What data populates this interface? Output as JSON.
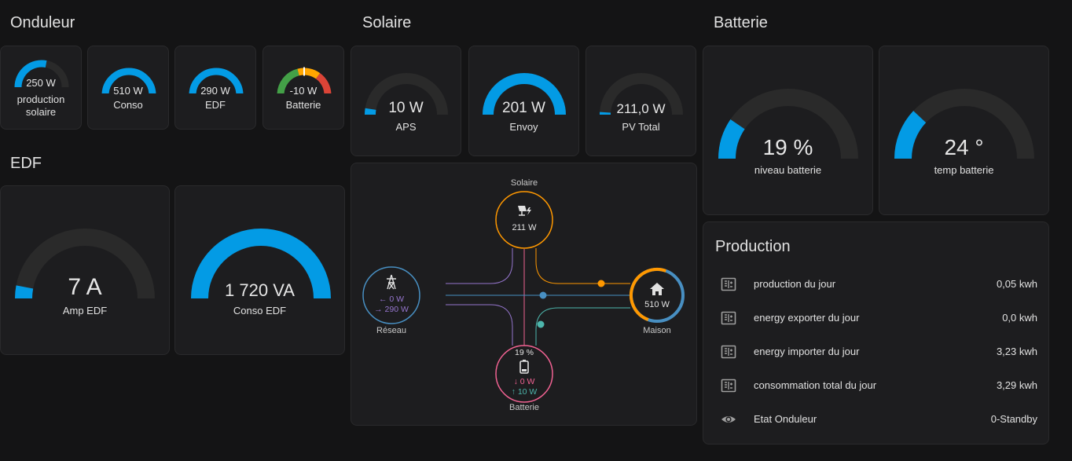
{
  "sections": {
    "onduleur": "Onduleur",
    "solaire": "Solaire",
    "batterie": "Batterie",
    "edf": "EDF"
  },
  "onduleur_gauges": [
    {
      "value": "250 W",
      "label": "production solaire",
      "level": 0.56
    },
    {
      "value": "510 W",
      "label": "Conso",
      "level": 1.0
    },
    {
      "value": "290 W",
      "label": "EDF",
      "level": 1.0
    },
    {
      "value": "-10 W",
      "label": "Batterie",
      "level": 0.5
    }
  ],
  "solaire_gauges": [
    {
      "value": "10 W",
      "label": "APS",
      "level": 0.05
    },
    {
      "value": "201 W",
      "label": "Envoy",
      "level": 1.0
    },
    {
      "value": "211,0 W",
      "label": "PV Total",
      "level": 0.02
    }
  ],
  "batterie_gauges": [
    {
      "value": "19 %",
      "label": "niveau batterie",
      "level": 0.19
    },
    {
      "value": "24 °",
      "label": "temp batterie",
      "level": 0.24
    }
  ],
  "edf_gauges": [
    {
      "value": "7 A",
      "label": "Amp EDF",
      "level": 0.06
    },
    {
      "value": "1 720 VA",
      "label": "Conso EDF",
      "level": 1.0
    }
  ],
  "energy_flow": {
    "solar": {
      "name": "Solaire",
      "value": "211 W"
    },
    "grid": {
      "name": "Réseau",
      "import": "← 0 W",
      "export": "→ 290 W"
    },
    "home": {
      "name": "Maison",
      "value": "510 W"
    },
    "battery": {
      "name": "Batterie",
      "percent": "19 %",
      "out": "↓ 0 W",
      "in": "↑ 10 W"
    }
  },
  "production": {
    "title": "Production",
    "rows": [
      {
        "icon": "meter-icon",
        "label": "production du jour",
        "value": "0,05 kwh"
      },
      {
        "icon": "meter-icon",
        "label": "energy exporter du jour",
        "value": "0,0 kwh"
      },
      {
        "icon": "meter-icon",
        "label": "energy importer du jour",
        "value": "3,23 kwh"
      },
      {
        "icon": "meter-icon",
        "label": "consommation total du jour",
        "value": "3,29 kwh"
      },
      {
        "icon": "eye-icon",
        "label": "Etat Onduleur",
        "value": "0-Standby"
      }
    ]
  },
  "colors": {
    "gauge_fill": "#039be5",
    "gauge_track": "#2a2a2a",
    "solar": "#ff9800",
    "grid": "#488fc2",
    "battery": "#f06292",
    "battery_in": "#4db6ac",
    "grid_purple": "#9575cd",
    "home_blue": "#488fc2"
  }
}
